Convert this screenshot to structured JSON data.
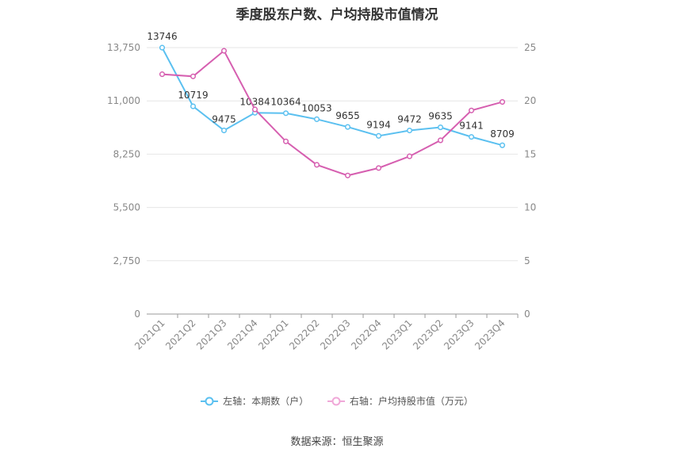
{
  "title": "季度股东户数、户均持股市值情况",
  "source": "数据来源：恒生聚源",
  "chart_data": {
    "type": "line",
    "categories": [
      "2021Q1",
      "2021Q2",
      "2021Q3",
      "2021Q4",
      "2022Q1",
      "2022Q2",
      "2022Q3",
      "2022Q4",
      "2023Q1",
      "2023Q2",
      "2023Q3",
      "2023Q4"
    ],
    "series": [
      {
        "name": "左轴：本期数（户）",
        "axis": "left",
        "color": "#5bc0f0",
        "values": [
          13746,
          10719,
          9475,
          10384,
          10364,
          10053,
          9655,
          9194,
          9472,
          9635,
          9141,
          8709
        ],
        "labels": [
          "13746",
          "10719",
          "9475",
          "10384",
          "10364",
          "10053",
          "9655",
          "9194",
          "9472",
          "9635",
          "9141",
          "8709"
        ]
      },
      {
        "name": "右轴：户均持股市值（万元）",
        "axis": "right",
        "color": "#d65fb0",
        "values": [
          22.5,
          22.3,
          24.7,
          19.2,
          16.2,
          14.0,
          13.0,
          13.7,
          14.8,
          16.3,
          19.1,
          19.9
        ]
      }
    ],
    "y_left": {
      "min": 0,
      "max": 13750,
      "ticks": [
        0,
        2750,
        5500,
        8250,
        11000,
        13750
      ],
      "tick_labels": [
        "0",
        "2,750",
        "5,500",
        "8,250",
        "11,000",
        "13,750"
      ]
    },
    "y_right": {
      "min": 0,
      "max": 25,
      "ticks": [
        0,
        5,
        10,
        15,
        20,
        25
      ],
      "tick_labels": [
        "0",
        "5",
        "10",
        "15",
        "20",
        "25"
      ]
    },
    "grid": true,
    "legend_position": "bottom"
  }
}
